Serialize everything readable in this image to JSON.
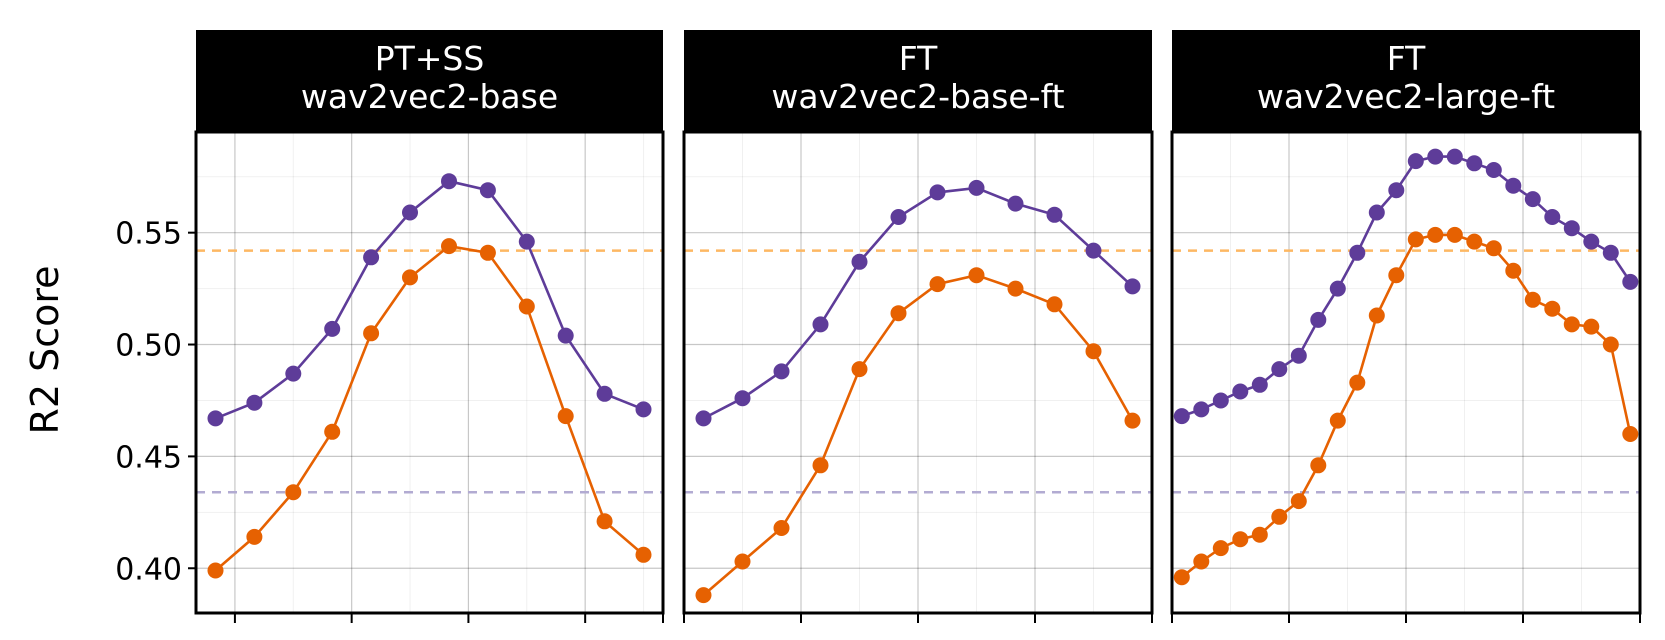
{
  "chart_data": {
    "type": "line",
    "ylabel": "R2 Score",
    "ylim": [
      0.38,
      0.595
    ],
    "y_ticks": [
      0.4,
      0.45,
      0.5,
      0.55
    ],
    "y_tick_labels": [
      "0.40",
      "0.45",
      "0.50",
      "0.55"
    ],
    "grid": true,
    "colors": {
      "purple_series": "#5e3c99",
      "orange_series": "#e66101",
      "purple_reference": "#b2abd2",
      "orange_reference": "#fdb863",
      "strip_background": "#000000",
      "strip_text": "#ffffff"
    },
    "reference_lines": [
      {
        "color": "orange_reference",
        "y": 0.542,
        "style": "dashed"
      },
      {
        "color": "purple_reference",
        "y": 0.434,
        "style": "dashed"
      }
    ],
    "panels": [
      {
        "title_line1": "PT+SS",
        "title_line2": "wav2vec2-base",
        "x": [
          1,
          2,
          3,
          4,
          5,
          6,
          7,
          8,
          9,
          10,
          11,
          12
        ],
        "xlim": [
          0.5,
          12.5
        ],
        "x_ticks": [
          1.5,
          4.5,
          7.5,
          10.5,
          12.5
        ],
        "series": [
          {
            "color": "purple_series",
            "values": [
              0.467,
              0.474,
              0.487,
              0.507,
              0.539,
              0.559,
              0.573,
              0.569,
              0.546,
              0.504,
              0.478,
              0.471
            ]
          },
          {
            "color": "orange_series",
            "values": [
              0.399,
              0.414,
              0.434,
              0.461,
              0.505,
              0.53,
              0.544,
              0.541,
              0.517,
              0.468,
              0.421,
              0.406
            ]
          }
        ]
      },
      {
        "title_line1": "FT",
        "title_line2": "wav2vec2-base-ft",
        "x": [
          1,
          2,
          3,
          4,
          5,
          6,
          7,
          8,
          9,
          10,
          11,
          12
        ],
        "xlim": [
          0.5,
          12.5
        ],
        "x_ticks": [
          0.5,
          3.5,
          6.5,
          9.5,
          12.5
        ],
        "series": [
          {
            "color": "purple_series",
            "values": [
              0.467,
              0.476,
              0.488,
              0.509,
              0.537,
              0.557,
              0.568,
              0.57,
              0.563,
              0.558,
              0.542,
              0.526
            ]
          },
          {
            "color": "orange_series",
            "values": [
              0.388,
              0.403,
              0.418,
              0.446,
              0.489,
              0.514,
              0.527,
              0.531,
              0.525,
              0.518,
              0.497,
              0.466
            ]
          }
        ]
      },
      {
        "title_line1": "FT",
        "title_line2": "wav2vec2-large-ft",
        "x": [
          1,
          2,
          3,
          4,
          5,
          6,
          7,
          8,
          9,
          10,
          11,
          12,
          13,
          14,
          15,
          16,
          17,
          18,
          19,
          20,
          21,
          22,
          23,
          24
        ],
        "xlim": [
          0.5,
          24.5
        ],
        "x_ticks": [
          0.5,
          6.5,
          12.5,
          18.5,
          24.5
        ],
        "series": [
          {
            "color": "purple_series",
            "values": [
              0.468,
              0.471,
              0.475,
              0.479,
              0.482,
              0.489,
              0.495,
              0.511,
              0.525,
              0.541,
              0.559,
              0.569,
              0.582,
              0.584,
              0.584,
              0.581,
              0.578,
              0.571,
              0.565,
              0.557,
              0.552,
              0.546,
              0.541,
              0.528
            ]
          },
          {
            "color": "orange_series",
            "values": [
              0.396,
              0.403,
              0.409,
              0.413,
              0.415,
              0.423,
              0.43,
              0.446,
              0.466,
              0.483,
              0.513,
              0.531,
              0.547,
              0.549,
              0.549,
              0.546,
              0.543,
              0.533,
              0.52,
              0.516,
              0.509,
              0.508,
              0.5,
              0.46
            ]
          }
        ]
      }
    ]
  }
}
